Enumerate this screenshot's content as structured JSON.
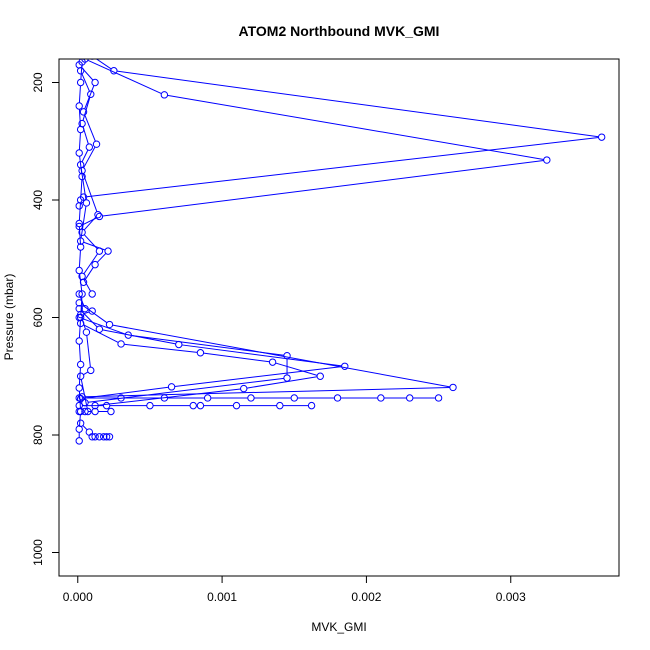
{
  "chart_data": {
    "type": "line",
    "title": "ATOM2 Northbound MVK_GMI",
    "xlabel": "MVK_GMI",
    "ylabel": "Pressure (mbar)",
    "xlim": [
      -0.00013,
      0.00375
    ],
    "ylim": [
      1040,
      160
    ],
    "y_reversed": true,
    "xticks": [
      0,
      0.001,
      0.002,
      0.003
    ],
    "xtick_labels": [
      "0.000",
      "0.001",
      "0.002",
      "0.003"
    ],
    "yticks": [
      200,
      400,
      600,
      800,
      1000
    ],
    "ytick_labels": [
      "200",
      "400",
      "600",
      "800",
      "1000"
    ],
    "grid": false,
    "color": "#0000ff",
    "marker": "open-circle",
    "series": [
      {
        "points": [
          [
            3e-05,
            165
          ],
          [
            2e-05,
            200
          ],
          [
            1e-05,
            240
          ],
          [
            2e-05,
            280
          ],
          [
            1e-05,
            320
          ],
          [
            3e-05,
            360
          ],
          [
            2e-05,
            400
          ],
          [
            1e-05,
            440
          ],
          [
            2e-05,
            480
          ],
          [
            1e-05,
            520
          ],
          [
            3e-05,
            560
          ],
          [
            2e-05,
            600
          ],
          [
            1e-05,
            640
          ],
          [
            2e-05,
            680
          ],
          [
            1e-05,
            720
          ],
          [
            2e-05,
            760
          ],
          [
            1e-05,
            790
          ],
          [
            1e-05,
            810
          ]
        ]
      },
      {
        "points": [
          [
            0.0001,
            155
          ],
          [
            0.00025,
            180
          ],
          [
            0.00363,
            293
          ],
          [
            4e-05,
            395
          ],
          [
            1e-05,
            410
          ]
        ]
      },
      {
        "points": [
          [
            5e-05,
            160
          ],
          [
            0.0006,
            221
          ],
          [
            0.00325,
            332
          ],
          [
            0.00015,
            428
          ],
          [
            1e-05,
            445
          ]
        ]
      },
      {
        "points": [
          [
            1e-05,
            575
          ],
          [
            0.00022,
            612
          ],
          [
            0.0026,
            719
          ],
          [
            3e-05,
            735
          ]
        ]
      },
      {
        "points": [
          [
            1e-05,
            585
          ],
          [
            0.00015,
            620
          ],
          [
            0.0007,
            646
          ],
          [
            0.00185,
            683
          ],
          [
            0.00065,
            718
          ],
          [
            2e-05,
            738
          ]
        ]
      },
      {
        "points": [
          [
            1e-05,
            600
          ],
          [
            0.00035,
            630
          ],
          [
            0.00145,
            665
          ],
          [
            0.00145,
            703
          ],
          [
            5e-05,
            745
          ]
        ]
      },
      {
        "points": [
          [
            2e-05,
            610
          ],
          [
            0.0003,
            645
          ],
          [
            0.00085,
            660
          ],
          [
            0.00135,
            676
          ],
          [
            0.00168,
            700
          ],
          [
            0.00115,
            721
          ],
          [
            0.00012,
            750
          ]
        ]
      },
      {
        "points": [
          [
            1e-05,
            737
          ],
          [
            0.0003,
            737
          ],
          [
            0.0006,
            737
          ],
          [
            0.0009,
            737
          ],
          [
            0.0012,
            737
          ],
          [
            0.0015,
            737
          ],
          [
            0.0018,
            737
          ],
          [
            0.0021,
            737
          ],
          [
            0.0023,
            737
          ],
          [
            0.0025,
            737
          ]
        ]
      },
      {
        "points": [
          [
            1e-05,
            750
          ],
          [
            0.0002,
            750
          ],
          [
            0.0005,
            750
          ],
          [
            0.0008,
            750
          ],
          [
            0.00085,
            750
          ],
          [
            0.0011,
            750
          ],
          [
            0.0014,
            750
          ],
          [
            0.00162,
            750
          ]
        ]
      },
      {
        "points": [
          [
            1e-05,
            760
          ],
          [
            5e-05,
            760
          ],
          [
            0.00012,
            760
          ],
          [
            0.00023,
            760
          ]
        ]
      },
      {
        "points": [
          [
            2e-05,
            780
          ],
          [
            8e-05,
            795
          ],
          [
            0.0001,
            803
          ],
          [
            0.00012,
            803
          ],
          [
            0.00015,
            803
          ],
          [
            0.00018,
            803
          ],
          [
            0.0002,
            803
          ],
          [
            0.00022,
            803
          ]
        ]
      },
      {
        "points": [
          [
            1e-05,
            170
          ],
          [
            0.00012,
            200
          ],
          [
            4e-05,
            250
          ],
          [
            0.00013,
            305
          ],
          [
            3e-05,
            350
          ],
          [
            0.00014,
            425
          ],
          [
            3e-05,
            455
          ],
          [
            0.00015,
            487
          ],
          [
            3e-05,
            530
          ],
          [
            0.0001,
            560
          ]
        ]
      },
      {
        "points": [
          [
            2e-05,
            180
          ],
          [
            9e-05,
            220
          ],
          [
            3e-05,
            270
          ],
          [
            8e-05,
            310
          ],
          [
            2e-05,
            340
          ],
          [
            6e-05,
            405
          ],
          [
            2e-05,
            470
          ],
          [
            0.00021,
            487
          ],
          [
            0.00012,
            510
          ],
          [
            4e-05,
            540
          ]
        ]
      },
      {
        "points": [
          [
            1e-05,
            560
          ],
          [
            5e-05,
            585
          ],
          [
            0.0001,
            589
          ],
          [
            2e-05,
            595
          ],
          [
            6e-05,
            625
          ],
          [
            9e-05,
            690
          ],
          [
            2e-05,
            700
          ],
          [
            7e-05,
            760
          ]
        ]
      }
    ]
  }
}
